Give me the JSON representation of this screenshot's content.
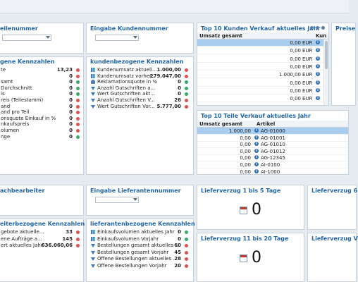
{
  "colors": {
    "accent": "#1f63a8",
    "green": "#3aa76d",
    "red": "#d9534f",
    "selected_row": "#a9cdee"
  },
  "panel_teilenummer": {
    "title": "eilenummer"
  },
  "panel_kundennummer": {
    "title": "Eingabe Kundennummer"
  },
  "panel_top_kunden": {
    "title": "Top 10 Kunden Verkauf aktuelles Jahr",
    "col_umsatz": "Umsatz gesamt",
    "col_kunde": "Kun",
    "rows": [
      {
        "value": "0,00",
        "currency": "EUR",
        "selected": true
      },
      {
        "value": "0,00",
        "currency": "EUR"
      },
      {
        "value": "0,00",
        "currency": "EUR"
      },
      {
        "value": "0,00",
        "currency": "EUR"
      },
      {
        "value": "1.000,00",
        "currency": "EUR"
      },
      {
        "value": "0,00",
        "currency": "EUR"
      },
      {
        "value": "0,00",
        "currency": "EUR"
      },
      {
        "value": "0,00",
        "currency": "EUR"
      }
    ]
  },
  "panel_preise": {
    "title": "Preise"
  },
  "panel_teile_kpis": {
    "title": "gene Kennzahlen",
    "rows": [
      {
        "label": "te",
        "value": "13,23",
        "status": "red"
      },
      {
        "label": "",
        "value": "0",
        "status": "red"
      },
      {
        "label": "samt",
        "value": "0",
        "status": "green"
      },
      {
        "label": "Durchschnitt",
        "value": "0",
        "status": "green"
      },
      {
        "label": "is",
        "value": "0",
        "status": "green"
      },
      {
        "label": "reis (Teilestamm)",
        "value": "0",
        "status": "red"
      },
      {
        "label": "and",
        "value": "0",
        "status": "red"
      },
      {
        "label": "and pro Teil",
        "value": "0",
        "status": "red"
      },
      {
        "label": "onsquote Einkauf in %",
        "value": "0",
        "status": "red"
      },
      {
        "label": "nkaufspreis",
        "value": "0",
        "status": "red"
      },
      {
        "label": "olumen",
        "value": "0",
        "status": "red"
      },
      {
        "label": "nge",
        "value": "0",
        "status": "green"
      }
    ]
  },
  "panel_kunden_kpis": {
    "title": "kundenbezogene Kennzahlen",
    "rows": [
      {
        "icon": "bar-chart-icon",
        "label": "Kundenumsatz aktuell...",
        "value": "1.000,00",
        "status": "red"
      },
      {
        "icon": "bar-chart-icon",
        "label": "Kundenumsatz vorher...",
        "value": "279.047,00",
        "status": "red"
      },
      {
        "icon": "user-icon",
        "label": "Reklamationsquote in %",
        "value": "0",
        "status": "green"
      },
      {
        "icon": "download-icon",
        "label": "Anzahl Gutschriften a...",
        "value": "0",
        "status": "green"
      },
      {
        "icon": "download-icon",
        "label": "Wert Gutschriften akt...",
        "value": "0",
        "status": "green"
      },
      {
        "icon": "download-icon",
        "label": "Anzahl Gutschriften V...",
        "value": "26",
        "status": "red"
      },
      {
        "icon": "download-icon",
        "label": "Wert Gutschriften Vor...",
        "value": "5.777,00",
        "status": "red"
      }
    ]
  },
  "panel_top_teile": {
    "title": "Top 10 Teile Verkauf aktuelles Jahr",
    "col_umsatz": "Umsatz gesamt",
    "col_artikel": "Artikel",
    "rows": [
      {
        "value": "1.000,00",
        "artikel": "AG-01000",
        "selected": true
      },
      {
        "value": "0,00",
        "artikel": "AG-01001"
      },
      {
        "value": "0,00",
        "artikel": "AG-01010"
      },
      {
        "value": "0,00",
        "artikel": "AG-01012"
      },
      {
        "value": "0,00",
        "artikel": "AG-12345"
      },
      {
        "value": "0,00",
        "artikel": "AI-0100"
      },
      {
        "value": "0,00",
        "artikel": "AI-1000"
      }
    ]
  },
  "panel_sachbearbeiter": {
    "title": "achbearbeiter"
  },
  "panel_lieferantennummer": {
    "title": "Eingabe Lieferantennummer"
  },
  "panel_lv_1_5": {
    "title": "Lieferverzug 1 bis 5 Tage",
    "count": "0"
  },
  "panel_lv_6": {
    "title": "Lieferverzug 6"
  },
  "panel_lv_11_20": {
    "title": "Lieferverzug 11 bis 20 Tage",
    "count": "0"
  },
  "panel_lv_v": {
    "title": "Lieferverzug V"
  },
  "panel_bearbeiter_kpis": {
    "title": "eiterbezogene Kennzahlen",
    "rows": [
      {
        "label": "gebote aktuelle...",
        "value": "33",
        "status": "red"
      },
      {
        "label": "ene Aufträge a...",
        "value": "145",
        "status": "red"
      },
      {
        "label": "ert aktuelles Jahr",
        "value": "636.060,06",
        "status": "red"
      }
    ]
  },
  "panel_lieferanten_kpis": {
    "title": "lieferantenbezogene Kennzahlen",
    "rows": [
      {
        "icon": "bar-chart-icon",
        "label": "Einkaufsvolumen aktuelles Jahr",
        "value": "0",
        "status": "green"
      },
      {
        "icon": "bar-chart-icon",
        "label": "Einkaufsvolumen Vorjahr",
        "value": "0",
        "status": "green"
      },
      {
        "icon": "download-icon",
        "label": "Bestellungen gesamt aktuelles ...",
        "value": "60",
        "status": "red"
      },
      {
        "icon": "download-icon",
        "label": "Bestellungen gesamt Vorjahr",
        "value": "45",
        "status": "red"
      },
      {
        "icon": "download-icon",
        "label": "Offene Bestellungen  aktuelles ...",
        "value": "28",
        "status": "red"
      },
      {
        "icon": "download-icon",
        "label": "Offene Bestellungen Vorjahr",
        "value": "20",
        "status": "red"
      }
    ]
  }
}
